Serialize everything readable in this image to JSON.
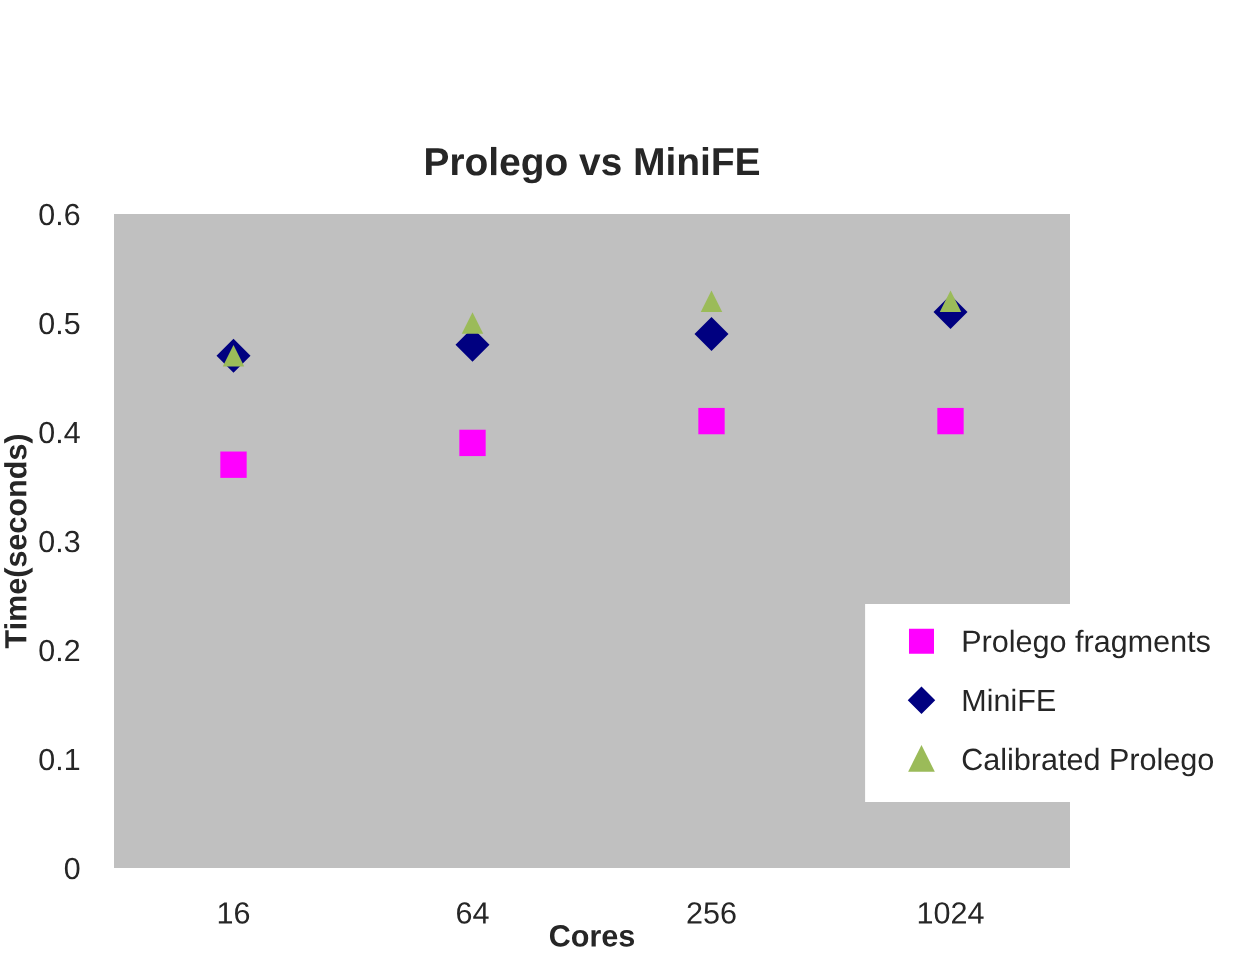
{
  "chart_data": {
    "type": "scatter",
    "title": "Prolego vs MiniFE",
    "xlabel": "Cores",
    "ylabel": "Time(seconds)",
    "categories": [
      "16",
      "64",
      "256",
      "1024"
    ],
    "series": [
      {
        "name": "Prolego fragments",
        "color": "#ff00ff",
        "marker": "square",
        "values": [
          0.37,
          0.39,
          0.41,
          0.41
        ]
      },
      {
        "name": "MiniFE",
        "color": "#000080",
        "marker": "diamond",
        "values": [
          0.47,
          0.48,
          0.49,
          0.51
        ]
      },
      {
        "name": "Calibrated Prolego",
        "color": "#9bbb59",
        "marker": "triangle",
        "values": [
          0.47,
          0.5,
          0.52,
          0.52
        ]
      }
    ],
    "ylim": [
      0,
      0.6
    ],
    "yticks": [
      0,
      0.1,
      0.2,
      0.3,
      0.4,
      0.5,
      0.6
    ],
    "grid": false,
    "legend": "bottom right"
  }
}
